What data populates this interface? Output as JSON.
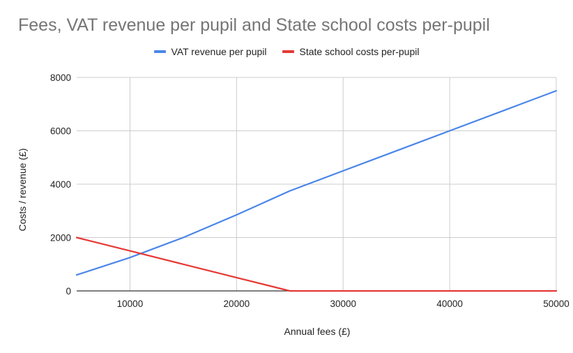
{
  "chart_data": {
    "type": "line",
    "title": "Fees, VAT revenue per pupil and State school costs per-pupil",
    "xlabel": "Annual fees (£)",
    "ylabel": "Costs / revenue (£)",
    "xlim": [
      5000,
      50000
    ],
    "ylim": [
      0,
      8000
    ],
    "x_ticks": [
      10000,
      20000,
      30000,
      40000,
      50000
    ],
    "y_ticks": [
      0,
      2000,
      4000,
      6000,
      8000
    ],
    "grid": true,
    "legend_position": "top-center",
    "series": [
      {
        "name": "VAT revenue per pupil",
        "color": "#4a86e8",
        "x": [
          5000,
          10000,
          15000,
          20000,
          25000,
          30000,
          35000,
          40000,
          45000,
          50000
        ],
        "y": [
          600,
          1250,
          2000,
          2850,
          3750,
          4500,
          5250,
          6000,
          6750,
          7500
        ]
      },
      {
        "name": "State school costs per-pupil",
        "color": "#e53935",
        "x": [
          5000,
          10000,
          15000,
          20000,
          25000,
          30000,
          35000,
          40000,
          45000,
          50000
        ],
        "y": [
          2000,
          1500,
          1000,
          500,
          0,
          0,
          0,
          0,
          0,
          0
        ]
      }
    ]
  }
}
